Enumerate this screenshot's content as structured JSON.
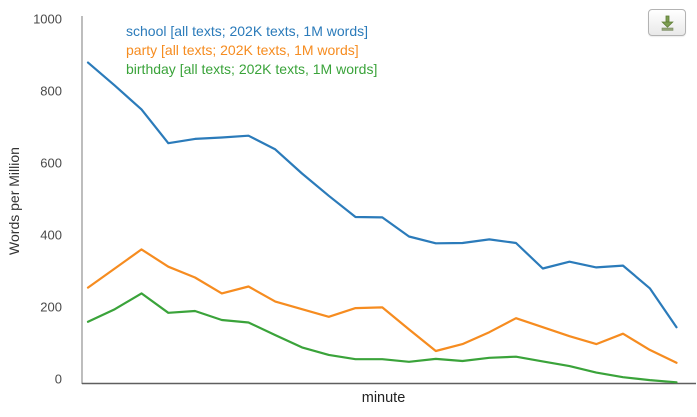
{
  "toolbar": {
    "download_icon": "download-arrow-icon"
  },
  "chart_data": {
    "type": "line",
    "title": "",
    "x_axis": {
      "label": "minute",
      "tick_labels_visible": false,
      "num_points": 23
    },
    "y_axis": {
      "label": "Words per Million",
      "min": 0,
      "max": 1000,
      "ticks": [
        0,
        200,
        400,
        600,
        800,
        1000
      ]
    },
    "grid": false,
    "legend_position": "top-left-inside",
    "series": [
      {
        "name": "school",
        "color": "#2b7bba",
        "legend_label": "school [all texts; 202K texts, 1M words]",
        "values": [
          890,
          826,
          760,
          666,
          678,
          682,
          687,
          649,
          582,
          520,
          461,
          460,
          407,
          388,
          389,
          399,
          389,
          318,
          337,
          321,
          326,
          263,
          155
        ]
      },
      {
        "name": "party",
        "color": "#f68c20",
        "legend_label": "party [all texts; 202K texts, 1M words]",
        "values": [
          265,
          318,
          371,
          323,
          293,
          249,
          268,
          226,
          205,
          184,
          208,
          210,
          149,
          89,
          108,
          141,
          180,
          155,
          130,
          108,
          137,
          92,
          56
        ]
      },
      {
        "name": "birthday",
        "color": "#3aa33a",
        "legend_label": "birthday [all texts; 202K texts, 1M words]",
        "values": [
          170,
          205,
          249,
          195,
          200,
          175,
          168,
          133,
          99,
          78,
          66,
          66,
          59,
          67,
          61,
          70,
          73,
          60,
          47,
          29,
          16,
          8,
          2
        ]
      }
    ],
    "colors": {
      "y_axis_line": "#9a9a9a",
      "x_axis_line": "#5f5f5f",
      "tick_label": "#4a4a4a"
    }
  }
}
